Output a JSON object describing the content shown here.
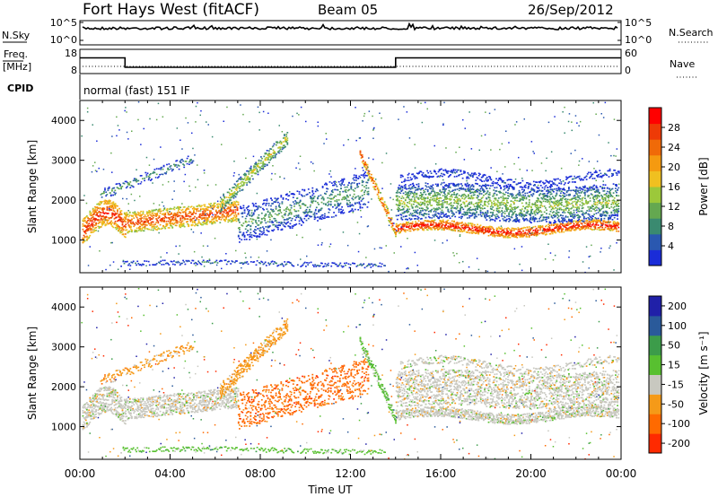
{
  "header": {
    "station": "Fort Hays West (fitACF)",
    "beam": "Beam 05",
    "date": "26/Sep/2012"
  },
  "left_labels": {
    "nsky": "N.Sky",
    "freq": "Freq.",
    "freq_unit": "[MHz]",
    "cpid": "CPID"
  },
  "right_labels": {
    "nsearch": "N.Search",
    "nave": "Nave"
  },
  "cpid_text": "normal (fast) 151 IF",
  "colors": {
    "power": [
      "#1a2cd8",
      "#2a58b0",
      "#3a8a70",
      "#64a850",
      "#9cc83a",
      "#f0c020",
      "#f59a10",
      "#f06a08",
      "#ee3a06",
      "#ff0000"
    ],
    "velocity": [
      "#ff2a00",
      "#ff6a00",
      "#f59a18",
      "#c8c8c0",
      "#58c030",
      "#3c9c4a",
      "#2a5a9a",
      "#2020a8"
    ]
  },
  "chart_data": [
    {
      "type": "line",
      "name": "noise-panel",
      "left_ticks": [
        "10^5",
        "10^0"
      ],
      "right_ticks": [
        "10^5",
        "10^0"
      ],
      "series": [
        {
          "name": "N.Sky"
        },
        {
          "name": "N.Search"
        }
      ]
    },
    {
      "type": "line",
      "name": "frequency-panel",
      "left_ticks": [
        "18",
        "8"
      ],
      "right_ticks": [
        "60",
        "0"
      ],
      "series": [
        {
          "name": "Freq.",
          "x": [
            "00:00",
            "02:00",
            "02:00",
            "14:00",
            "14:00",
            "24:00"
          ],
          "y": [
            14.5,
            14.5,
            10.6,
            10.6,
            14.5,
            14.5
          ]
        },
        {
          "name": "Nave",
          "x": [
            "00:00",
            "24:00"
          ],
          "y": [
            4,
            4
          ]
        }
      ]
    },
    {
      "type": "heatmap",
      "name": "power-panel",
      "ylabel": "Slant Range [km]",
      "ylim": [
        180,
        4500
      ],
      "y_ticks": [
        1000,
        2000,
        3000,
        4000
      ],
      "xlim": [
        "00:00",
        "24:00"
      ],
      "colorbar_label": "Power [dB]",
      "colorbar_ticks": [
        4,
        8,
        12,
        16,
        20,
        24,
        28
      ],
      "colorbar_range": [
        0,
        32
      ]
    },
    {
      "type": "heatmap",
      "name": "velocity-panel",
      "ylabel": "Slant Range [km]",
      "ylim": [
        180,
        4500
      ],
      "y_ticks": [
        1000,
        2000,
        3000,
        4000
      ],
      "xlabel": "Time UT",
      "x_ticks": [
        "00:00",
        "04:00",
        "08:00",
        "12:00",
        "16:00",
        "20:00",
        "00:00"
      ],
      "colorbar_label": "Velocity [m s⁻¹]",
      "colorbar_ticks": [
        "200",
        "100",
        "50",
        "15",
        "-15",
        "-50",
        "-100",
        "-200"
      ]
    }
  ]
}
